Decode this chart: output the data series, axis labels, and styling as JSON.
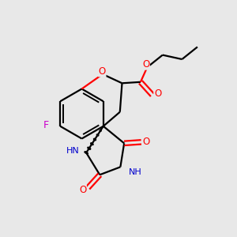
{
  "background_color": "#e8e8e8",
  "atom_colors": {
    "C": "#000000",
    "O": "#ff0000",
    "N": "#0000cd",
    "F": "#cc00cc",
    "H": "#008080"
  },
  "bond_color": "#000000",
  "linewidth": 1.6,
  "inner_lw": 1.4
}
